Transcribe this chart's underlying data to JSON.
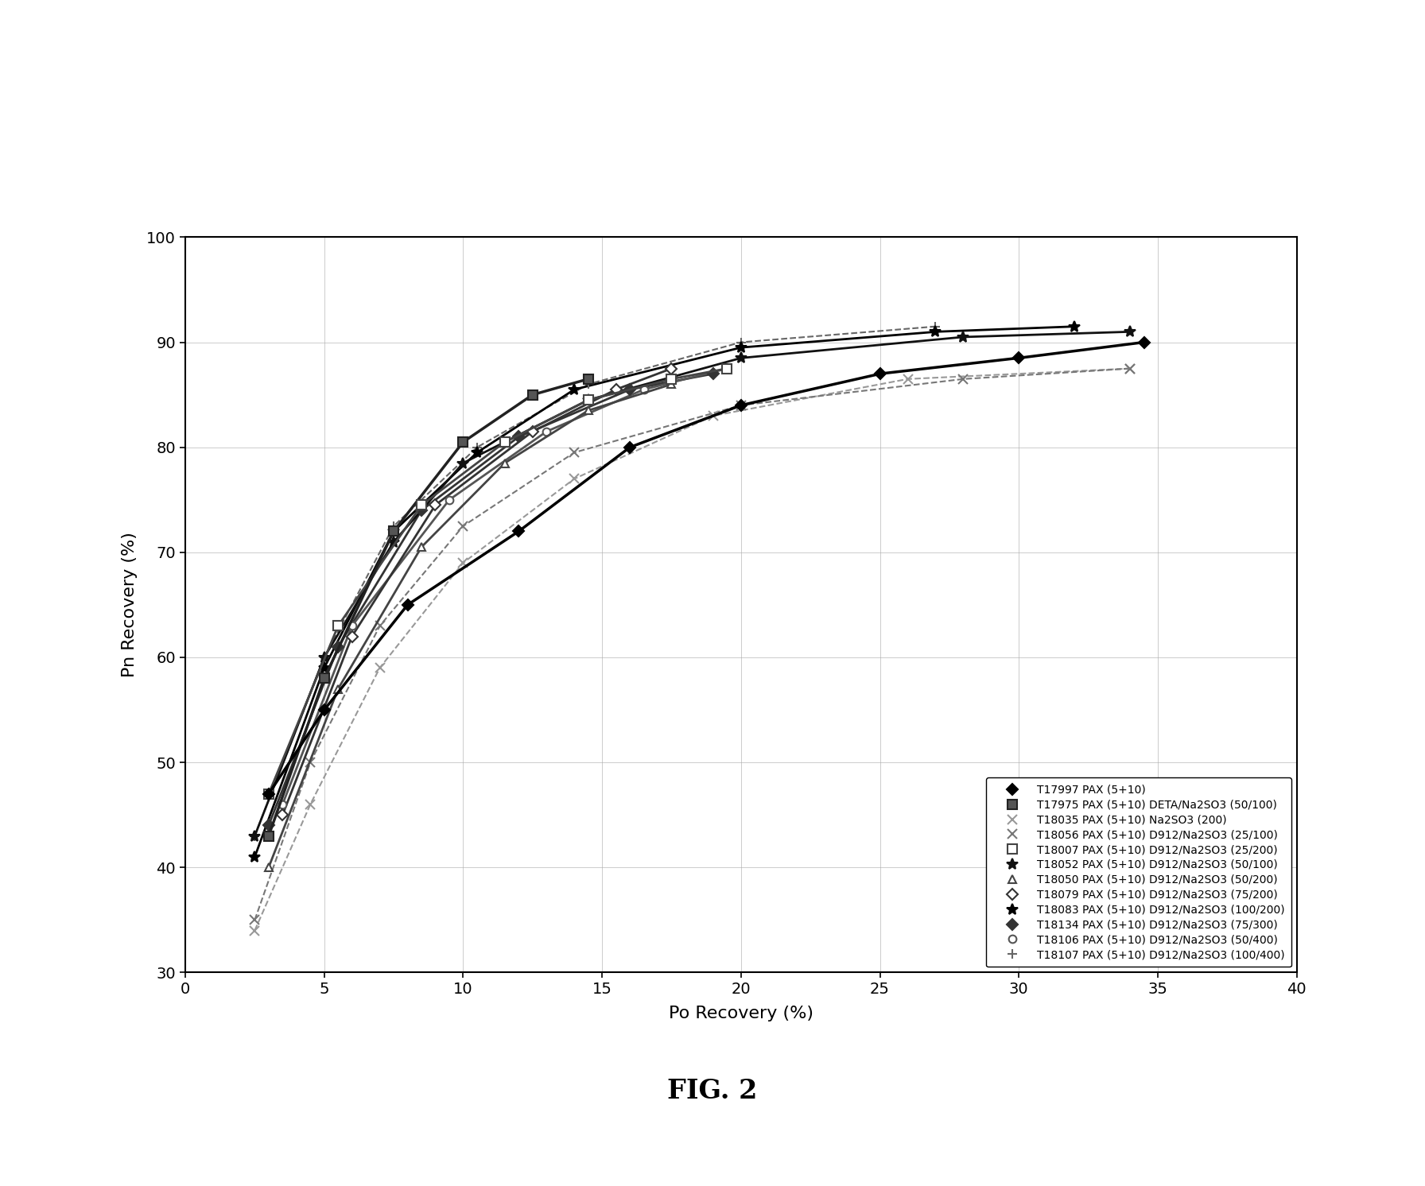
{
  "title": "FIG. 2",
  "xlabel": "Po Recovery (%)",
  "ylabel": "Pn Recovery (%)",
  "xlim": [
    0,
    40
  ],
  "ylim": [
    30,
    100
  ],
  "xticks": [
    0,
    5,
    10,
    15,
    20,
    25,
    30,
    35,
    40
  ],
  "yticks": [
    30,
    40,
    50,
    60,
    70,
    80,
    90,
    100
  ],
  "series": [
    {
      "label": "T17997 PAX (5+10)",
      "x": [
        3.0,
        5.0,
        8.0,
        12.0,
        16.0,
        20.0,
        25.0,
        30.0,
        34.5
      ],
      "y": [
        47.0,
        55.0,
        65.0,
        72.0,
        80.0,
        84.0,
        87.0,
        88.5,
        90.0
      ],
      "color": "#000000",
      "linewidth": 2.5,
      "linestyle": "-",
      "marker": "D",
      "markersize": 7,
      "markerfacecolor": "#000000",
      "zorder": 10
    },
    {
      "label": "T17975 PAX (5+10) DETA/Na2SO3 (50/100)",
      "x": [
        3.0,
        5.0,
        7.5,
        10.0,
        12.5,
        14.5
      ],
      "y": [
        43.0,
        58.0,
        72.0,
        80.5,
        85.0,
        86.5
      ],
      "color": "#222222",
      "linewidth": 2.5,
      "linestyle": "-",
      "marker": "s",
      "markersize": 8,
      "markerfacecolor": "#555555",
      "zorder": 9
    },
    {
      "label": "T18035 PAX (5+10) Na2SO3 (200)",
      "x": [
        2.5,
        4.5,
        7.0,
        10.0,
        14.0,
        19.0,
        26.0,
        34.0
      ],
      "y": [
        34.0,
        46.0,
        59.0,
        69.0,
        77.0,
        83.0,
        86.5,
        87.5
      ],
      "color": "#999999",
      "linewidth": 1.5,
      "linestyle": "--",
      "marker": "x",
      "markersize": 8,
      "markerfacecolor": "#999999",
      "zorder": 3
    },
    {
      "label": "T18056 PAX (5+10) D912/Na2SO3 (25/100)",
      "x": [
        2.5,
        4.5,
        7.0,
        10.0,
        14.0,
        20.0,
        28.0,
        34.0
      ],
      "y": [
        35.0,
        50.0,
        63.0,
        72.5,
        79.5,
        84.0,
        86.5,
        87.5
      ],
      "color": "#777777",
      "linewidth": 1.5,
      "linestyle": "--",
      "marker": "x",
      "markersize": 8,
      "markerfacecolor": "#777777",
      "zorder": 3
    },
    {
      "label": "T18007 PAX (5+10) D912/Na2SO3 (25/200)",
      "x": [
        3.0,
        5.5,
        8.5,
        11.5,
        14.5,
        17.5,
        19.5
      ],
      "y": [
        47.0,
        63.0,
        74.5,
        80.5,
        84.5,
        86.5,
        87.5
      ],
      "color": "#444444",
      "linewidth": 2.0,
      "linestyle": "-",
      "marker": "s",
      "markersize": 8,
      "markerfacecolor": "#ffffff",
      "zorder": 8
    },
    {
      "label": "T18052 PAX (5+10) D912/Na2SO3 (50/100)",
      "x": [
        2.5,
        5.0,
        7.5,
        10.0,
        14.5,
        20.0,
        28.0,
        34.0
      ],
      "y": [
        43.0,
        60.0,
        71.0,
        78.5,
        84.5,
        88.5,
        90.5,
        91.0
      ],
      "color": "#111111",
      "linewidth": 2.0,
      "linestyle": "-",
      "marker": "*",
      "markersize": 10,
      "markerfacecolor": "#111111",
      "zorder": 6
    },
    {
      "label": "T18050 PAX (5+10) D912/Na2SO3 (50/200)",
      "x": [
        3.0,
        5.5,
        8.5,
        11.5,
        14.5,
        17.5
      ],
      "y": [
        40.0,
        57.0,
        70.5,
        78.5,
        83.5,
        86.0
      ],
      "color": "#444444",
      "linewidth": 2.0,
      "linestyle": "-",
      "marker": "^",
      "markersize": 7,
      "markerfacecolor": "#ffffff",
      "zorder": 7
    },
    {
      "label": "T18079 PAX (5+10) D912/Na2SO3 (75/200)",
      "x": [
        3.5,
        6.0,
        9.0,
        12.5,
        15.5,
        17.5
      ],
      "y": [
        45.0,
        62.0,
        74.5,
        81.5,
        85.5,
        87.5
      ],
      "color": "#333333",
      "linewidth": 2.0,
      "linestyle": "-",
      "marker": "D",
      "markersize": 7,
      "markerfacecolor": "#ffffff",
      "zorder": 6
    },
    {
      "label": "T18083 PAX (5+10) D912/Na2SO3 (100/200)",
      "x": [
        2.5,
        5.0,
        7.5,
        10.5,
        14.0,
        20.0,
        27.0,
        32.0
      ],
      "y": [
        41.0,
        59.0,
        72.0,
        79.5,
        85.5,
        89.5,
        91.0,
        91.5
      ],
      "color": "#000000",
      "linewidth": 2.0,
      "linestyle": "-",
      "marker": "*",
      "markersize": 10,
      "markerfacecolor": "#000000",
      "zorder": 5
    },
    {
      "label": "T18134 PAX (5+10) D912/Na2SO3 (75/300)",
      "x": [
        3.0,
        5.5,
        8.5,
        12.0,
        16.0,
        19.0
      ],
      "y": [
        44.0,
        61.0,
        74.0,
        81.0,
        85.5,
        87.0
      ],
      "color": "#333333",
      "linewidth": 2.0,
      "linestyle": "-",
      "marker": "D",
      "markersize": 7,
      "markerfacecolor": "#333333",
      "zorder": 5
    },
    {
      "label": "T18106 PAX (5+10) D912/Na2SO3 (50/400)",
      "x": [
        3.5,
        6.0,
        9.5,
        13.0,
        16.5,
        19.5
      ],
      "y": [
        46.0,
        63.0,
        75.0,
        81.5,
        85.5,
        87.5
      ],
      "color": "#555555",
      "linewidth": 2.0,
      "linestyle": "-",
      "marker": "o",
      "markersize": 7,
      "markerfacecolor": "#ffffff",
      "zorder": 5
    },
    {
      "label": "T18107 PAX (5+10) D912/Na2SO3 (100/400)",
      "x": [
        2.5,
        5.0,
        7.5,
        10.5,
        14.5,
        20.0,
        27.0
      ],
      "y": [
        43.0,
        60.0,
        72.5,
        80.0,
        86.0,
        90.0,
        91.5
      ],
      "color": "#666666",
      "linewidth": 1.5,
      "linestyle": "--",
      "marker": "+",
      "markersize": 9,
      "markerfacecolor": "#666666",
      "zorder": 4
    }
  ]
}
